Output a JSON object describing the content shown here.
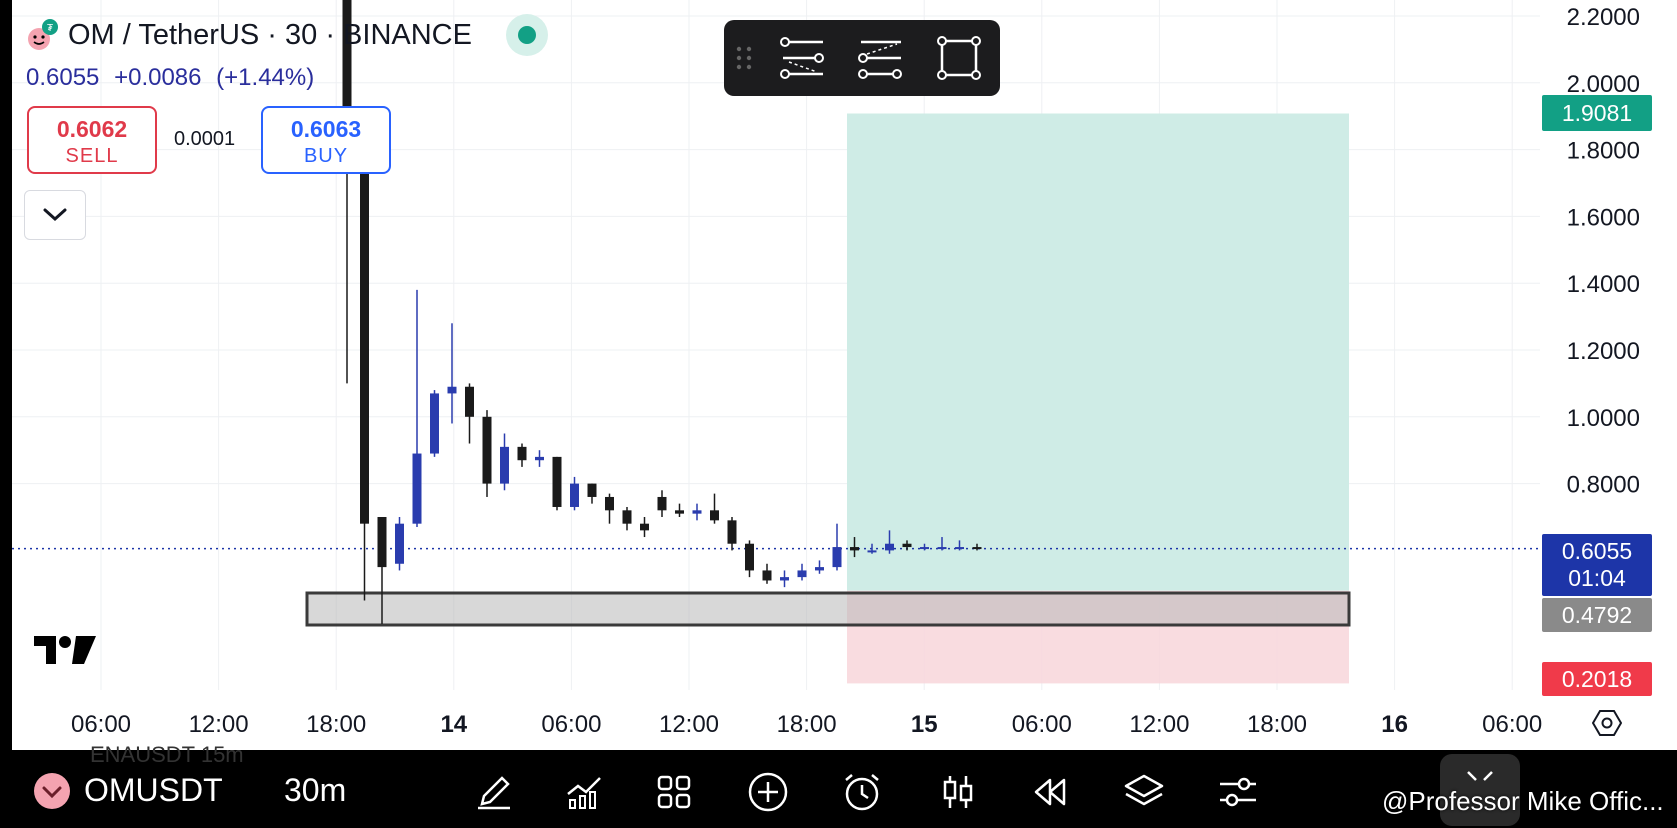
{
  "header": {
    "title": "OM / TetherUS · 30 · BINANCE",
    "last_price": "0.6055",
    "change": "+0.0086",
    "change_pct": "(+1.44%)"
  },
  "trade": {
    "sell_price": "0.6062",
    "sell_label": "SELL",
    "spread": "0.0001",
    "buy_price": "0.6063",
    "buy_label": "BUY"
  },
  "price_axis": {
    "ticks": [
      "2.2000",
      "2.0000",
      "1.8000",
      "1.6000",
      "1.4000",
      "1.2000",
      "1.0000",
      "0.8000"
    ],
    "badges": {
      "target": "1.9081",
      "current_price": "0.6055",
      "countdown": "01:04",
      "entry": "0.4792",
      "stop": "0.2018"
    }
  },
  "time_axis": {
    "ticks": [
      "06:00",
      "12:00",
      "18:00",
      "14",
      "06:00",
      "12:00",
      "18:00",
      "15",
      "06:00",
      "12:00",
      "18:00",
      "16",
      "06:00"
    ]
  },
  "colors": {
    "up": "#2a3cae",
    "down": "#1a1a1a",
    "profit_zone": "#cfece6",
    "loss_zone": "#f8d6da",
    "target": "#12a085",
    "stop": "#f03a4a"
  },
  "bottom_bar": {
    "symbol": "OMUSDT",
    "timeframe": "30m",
    "ghost_text": "ENAUSDT    15m",
    "watermark": "@Professor Mike Offic...",
    "tools": [
      "drawing-pen-icon",
      "indicators-icon",
      "layout-grid-icon",
      "add-icon",
      "alert-clock-icon",
      "candle-style-icon",
      "replay-icon",
      "layers-icon",
      "settings-sliders-icon",
      "fullscreen-exit-icon"
    ]
  },
  "chart_data": {
    "type": "candlestick",
    "symbol": "OMUSDT",
    "interval": "30",
    "ylim": [
      0.0,
      2.3
    ],
    "x": [
      "13 18:00",
      "13 19:00",
      "13 20:00",
      "13 21:00",
      "13 22:00",
      "13 23:00",
      "14 00:00",
      "14 01:00",
      "14 02:00",
      "14 03:00",
      "14 04:00",
      "14 05:00",
      "14 06:00",
      "14 07:00",
      "14 08:00",
      "14 09:00",
      "14 10:00",
      "14 11:00",
      "14 12:00",
      "14 13:00",
      "14 14:00",
      "14 15:00",
      "14 16:00",
      "14 17:00",
      "14 18:00",
      "14 19:00",
      "14 20:00",
      "14 21:00",
      "14 22:00",
      "14 23:00",
      "15 00:00",
      "15 01:00",
      "15 02:00",
      "15 03:00",
      "15 04:00",
      "15 05:00",
      "15 06:00"
    ],
    "open": [
      2.25,
      1.78,
      0.7,
      0.56,
      0.68,
      0.89,
      1.07,
      1.09,
      1.0,
      0.8,
      0.91,
      0.87,
      0.88,
      0.73,
      0.8,
      0.76,
      0.72,
      0.68,
      0.76,
      0.72,
      0.71,
      0.72,
      0.69,
      0.62,
      0.54,
      0.51,
      0.52,
      0.54,
      0.55,
      0.61,
      0.6,
      0.6,
      0.62,
      0.61,
      0.61,
      0.61,
      0.61
    ],
    "close": [
      1.8,
      0.68,
      0.55,
      0.68,
      0.89,
      1.07,
      1.09,
      1.0,
      0.8,
      0.91,
      0.87,
      0.88,
      0.73,
      0.8,
      0.76,
      0.72,
      0.68,
      0.66,
      0.72,
      0.71,
      0.72,
      0.69,
      0.62,
      0.54,
      0.51,
      0.52,
      0.54,
      0.55,
      0.61,
      0.6,
      0.6,
      0.62,
      0.61,
      0.61,
      0.61,
      0.61,
      0.6055
    ],
    "high": [
      2.3,
      1.78,
      0.7,
      0.7,
      1.38,
      1.08,
      1.28,
      1.1,
      1.02,
      0.95,
      0.92,
      0.9,
      0.88,
      0.82,
      0.8,
      0.77,
      0.73,
      0.7,
      0.78,
      0.74,
      0.74,
      0.77,
      0.7,
      0.63,
      0.56,
      0.54,
      0.56,
      0.57,
      0.68,
      0.64,
      0.62,
      0.66,
      0.63,
      0.62,
      0.64,
      0.63,
      0.62
    ],
    "low": [
      1.1,
      0.45,
      0.38,
      0.54,
      0.67,
      0.88,
      0.98,
      0.92,
      0.76,
      0.78,
      0.85,
      0.85,
      0.72,
      0.72,
      0.74,
      0.68,
      0.66,
      0.64,
      0.7,
      0.7,
      0.69,
      0.68,
      0.6,
      0.52,
      0.5,
      0.49,
      0.51,
      0.53,
      0.54,
      0.58,
      0.59,
      0.59,
      0.6,
      0.6,
      0.6,
      0.6,
      0.6
    ],
    "position": {
      "target": 1.9081,
      "entry": 0.4792,
      "stop": 0.2018,
      "current": 0.6055
    }
  }
}
